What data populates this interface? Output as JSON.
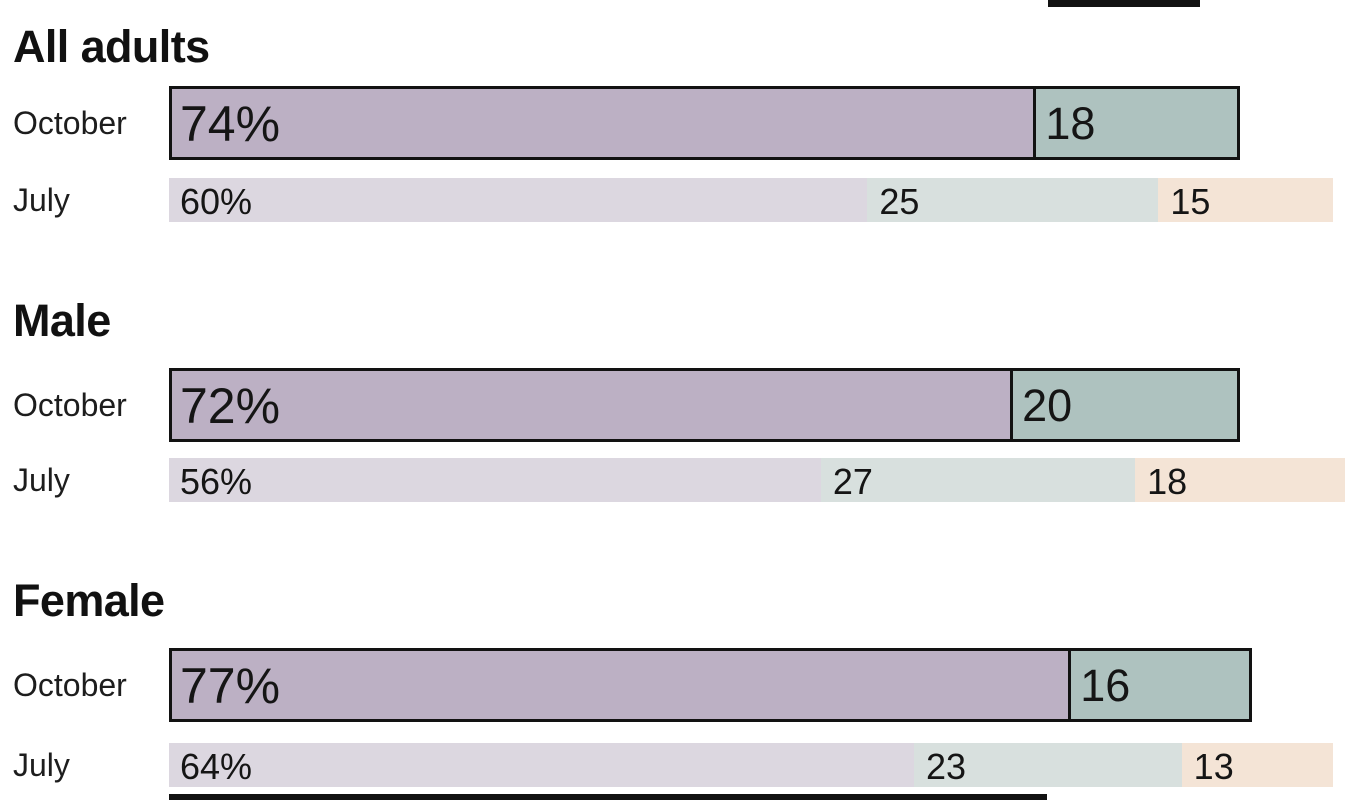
{
  "palette": {
    "october_purple": "#bcb0c4",
    "october_teal": "#aec2bf",
    "july_purple": "#dcd7e0",
    "july_teal": "#d8e0de",
    "july_peach": "#f4e4d6",
    "outline": "#121212",
    "text": "#151515"
  },
  "chart_data": {
    "type": "bar",
    "orientation": "horizontal-stacked",
    "x_max": 100,
    "layout": {
      "legend": "none",
      "grid": false,
      "cropped_right_edge": true
    },
    "groups": [
      {
        "label": "All adults",
        "rows": [
          {
            "period": "October",
            "emphasis": true,
            "segments": [
              {
                "value": 74,
                "label": "74%",
                "color": "october_purple"
              },
              {
                "value": 18,
                "label": "18",
                "color": "october_teal"
              }
            ]
          },
          {
            "period": "July",
            "emphasis": false,
            "segments": [
              {
                "value": 60,
                "label": "60%",
                "color": "july_purple"
              },
              {
                "value": 25,
                "label": "25",
                "color": "july_teal"
              },
              {
                "value": 15,
                "label": "15",
                "color": "july_peach"
              }
            ]
          }
        ]
      },
      {
        "label": "Male",
        "rows": [
          {
            "period": "October",
            "emphasis": true,
            "segments": [
              {
                "value": 72,
                "label": "72%",
                "color": "october_purple"
              },
              {
                "value": 20,
                "label": "20",
                "color": "october_teal"
              }
            ]
          },
          {
            "period": "July",
            "emphasis": false,
            "segments": [
              {
                "value": 56,
                "label": "56%",
                "color": "july_purple"
              },
              {
                "value": 27,
                "label": "27",
                "color": "july_teal"
              },
              {
                "value": 18,
                "label": "18",
                "color": "july_peach"
              }
            ]
          }
        ]
      },
      {
        "label": "Female",
        "rows": [
          {
            "period": "October",
            "emphasis": true,
            "segments": [
              {
                "value": 77,
                "label": "77%",
                "color": "october_purple"
              },
              {
                "value": 16,
                "label": "16",
                "color": "october_teal"
              }
            ]
          },
          {
            "period": "July",
            "emphasis": false,
            "segments": [
              {
                "value": 64,
                "label": "64%",
                "color": "july_purple"
              },
              {
                "value": 23,
                "label": "23",
                "color": "july_teal"
              },
              {
                "value": 13,
                "label": "13",
                "color": "july_peach"
              }
            ]
          }
        ]
      }
    ]
  }
}
